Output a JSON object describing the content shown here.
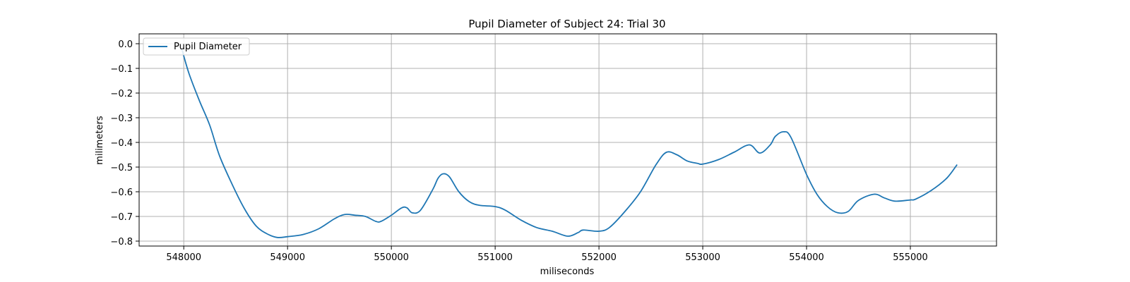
{
  "chart_data": {
    "type": "line",
    "title": "Pupil Diameter of Subject 24: Trial 30",
    "xlabel": "miliseconds",
    "ylabel": "milimeters",
    "xlim": [
      547570,
      555830
    ],
    "ylim": [
      -0.82,
      0.04
    ],
    "xticks": [
      548000,
      549000,
      550000,
      551000,
      552000,
      553000,
      554000,
      555000
    ],
    "yticks": [
      0.0,
      -0.1,
      -0.2,
      -0.3,
      -0.4,
      -0.5,
      -0.6,
      -0.7,
      -0.8
    ],
    "ytick_labels": [
      "0.0",
      "−0.1",
      "−0.2",
      "−0.3",
      "−0.4",
      "−0.5",
      "−0.6",
      "−0.7",
      "−0.8"
    ],
    "grid": true,
    "legend_position": "top-left",
    "series": [
      {
        "name": "Pupil Diameter",
        "color": "#1f77b4",
        "points": [
          [
            547980,
            -0.02
          ],
          [
            548050,
            -0.12
          ],
          [
            548150,
            -0.23
          ],
          [
            548250,
            -0.33
          ],
          [
            548350,
            -0.46
          ],
          [
            548500,
            -0.6
          ],
          [
            548600,
            -0.68
          ],
          [
            548700,
            -0.74
          ],
          [
            548800,
            -0.77
          ],
          [
            548900,
            -0.785
          ],
          [
            549000,
            -0.782
          ],
          [
            549150,
            -0.773
          ],
          [
            549300,
            -0.75
          ],
          [
            549450,
            -0.71
          ],
          [
            549550,
            -0.692
          ],
          [
            549650,
            -0.695
          ],
          [
            549750,
            -0.7
          ],
          [
            549850,
            -0.72
          ],
          [
            549900,
            -0.72
          ],
          [
            550000,
            -0.695
          ],
          [
            550100,
            -0.665
          ],
          [
            550150,
            -0.665
          ],
          [
            550200,
            -0.685
          ],
          [
            550280,
            -0.675
          ],
          [
            550400,
            -0.59
          ],
          [
            550450,
            -0.545
          ],
          [
            550500,
            -0.527
          ],
          [
            550560,
            -0.54
          ],
          [
            550650,
            -0.6
          ],
          [
            550750,
            -0.64
          ],
          [
            550850,
            -0.655
          ],
          [
            551000,
            -0.66
          ],
          [
            551100,
            -0.675
          ],
          [
            551250,
            -0.715
          ],
          [
            551400,
            -0.745
          ],
          [
            551550,
            -0.76
          ],
          [
            551700,
            -0.78
          ],
          [
            551800,
            -0.765
          ],
          [
            551850,
            -0.755
          ],
          [
            552000,
            -0.76
          ],
          [
            552100,
            -0.745
          ],
          [
            552250,
            -0.68
          ],
          [
            552400,
            -0.6
          ],
          [
            552550,
            -0.49
          ],
          [
            552650,
            -0.44
          ],
          [
            552750,
            -0.45
          ],
          [
            552850,
            -0.475
          ],
          [
            552950,
            -0.485
          ],
          [
            553000,
            -0.488
          ],
          [
            553150,
            -0.47
          ],
          [
            553300,
            -0.44
          ],
          [
            553450,
            -0.41
          ],
          [
            553550,
            -0.443
          ],
          [
            553650,
            -0.41
          ],
          [
            553700,
            -0.375
          ],
          [
            553780,
            -0.357
          ],
          [
            553850,
            -0.38
          ],
          [
            554000,
            -0.53
          ],
          [
            554100,
            -0.61
          ],
          [
            554200,
            -0.66
          ],
          [
            554300,
            -0.685
          ],
          [
            554400,
            -0.68
          ],
          [
            554500,
            -0.635
          ],
          [
            554650,
            -0.61
          ],
          [
            554750,
            -0.625
          ],
          [
            554850,
            -0.638
          ],
          [
            555000,
            -0.633
          ],
          [
            555050,
            -0.63
          ],
          [
            555200,
            -0.595
          ],
          [
            555350,
            -0.545
          ],
          [
            555450,
            -0.49
          ]
        ]
      }
    ]
  }
}
